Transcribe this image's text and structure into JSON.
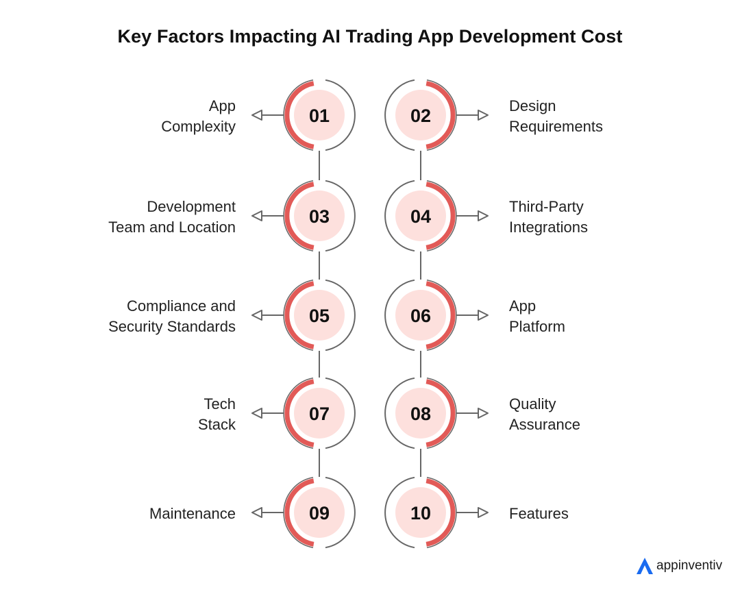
{
  "title": "Key Factors Impacting AI Trading App Development Cost",
  "colors": {
    "accent_arc": "#e25a57",
    "inner_fill": "#fde0dd",
    "outline": "#666666",
    "logo_blue": "#1a6bf0"
  },
  "factors": [
    {
      "num": "01",
      "lines": [
        "App",
        "Complexity"
      ],
      "side": "left"
    },
    {
      "num": "02",
      "lines": [
        "Design",
        "Requirements"
      ],
      "side": "right"
    },
    {
      "num": "03",
      "lines": [
        "Development",
        "Team and Location"
      ],
      "side": "left"
    },
    {
      "num": "04",
      "lines": [
        "Third-Party",
        "Integrations"
      ],
      "side": "right"
    },
    {
      "num": "05",
      "lines": [
        "Compliance and",
        "Security Standards"
      ],
      "side": "left"
    },
    {
      "num": "06",
      "lines": [
        "App",
        "Platform"
      ],
      "side": "right"
    },
    {
      "num": "07",
      "lines": [
        "Tech",
        "Stack"
      ],
      "side": "left"
    },
    {
      "num": "08",
      "lines": [
        "Quality",
        "Assurance"
      ],
      "side": "right"
    },
    {
      "num": "09",
      "lines": [
        "Maintenance"
      ],
      "side": "left"
    },
    {
      "num": "10",
      "lines": [
        "Features"
      ],
      "side": "right"
    }
  ],
  "logo": {
    "text": "appinventiv",
    "icon": "appinventiv-logo-icon"
  }
}
